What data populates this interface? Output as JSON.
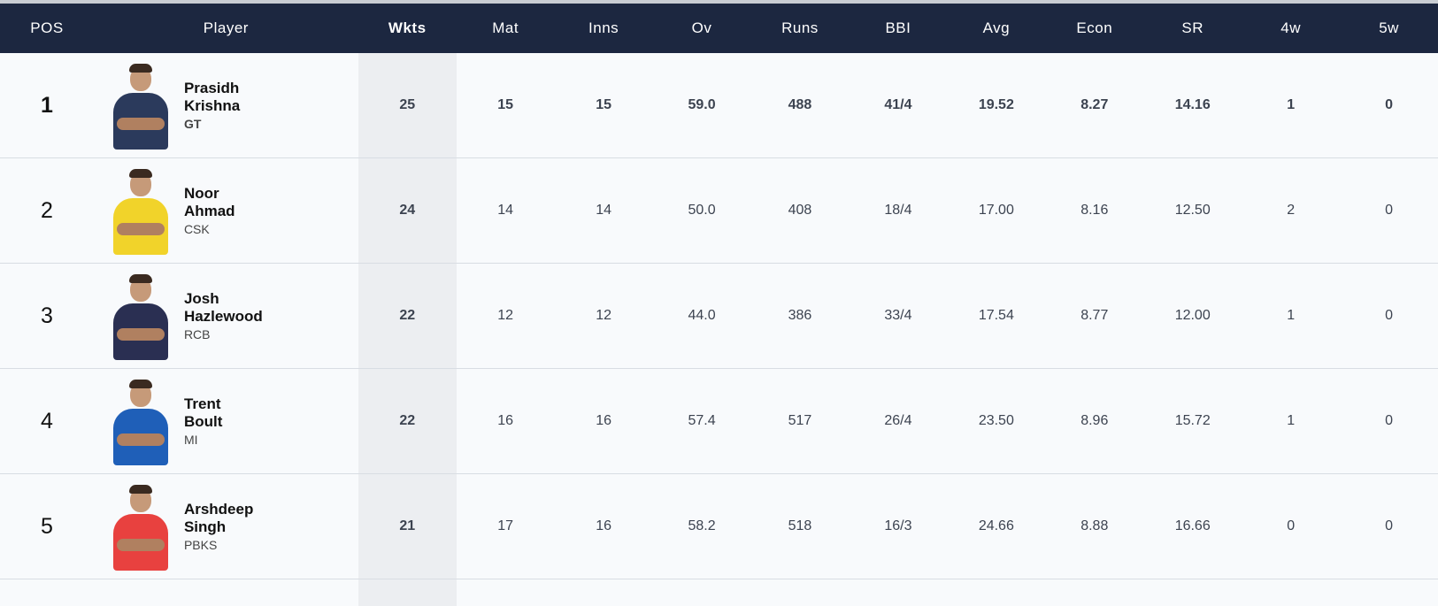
{
  "headers": {
    "pos": "POS",
    "player": "Player",
    "wkts": "Wkts",
    "mat": "Mat",
    "inns": "Inns",
    "ov": "Ov",
    "runs": "Runs",
    "bbi": "BBI",
    "avg": "Avg",
    "econ": "Econ",
    "sr": "SR",
    "four_w": "4w",
    "five_w": "5w"
  },
  "rows": [
    {
      "pos": "1",
      "first": "Prasidh",
      "last": "Krishna",
      "team": "GT",
      "wkts": "25",
      "mat": "15",
      "inns": "15",
      "ov": "59.0",
      "runs": "488",
      "bbi": "41/4",
      "avg": "19.52",
      "econ": "8.27",
      "sr": "14.16",
      "four_w": "1",
      "five_w": "0",
      "jersey": "#2b3a5c"
    },
    {
      "pos": "2",
      "first": "Noor",
      "last": "Ahmad",
      "team": "CSK",
      "wkts": "24",
      "mat": "14",
      "inns": "14",
      "ov": "50.0",
      "runs": "408",
      "bbi": "18/4",
      "avg": "17.00",
      "econ": "8.16",
      "sr": "12.50",
      "four_w": "2",
      "five_w": "0",
      "jersey": "#f1d32a"
    },
    {
      "pos": "3",
      "first": "Josh",
      "last": "Hazlewood",
      "team": "RCB",
      "wkts": "22",
      "mat": "12",
      "inns": "12",
      "ov": "44.0",
      "runs": "386",
      "bbi": "33/4",
      "avg": "17.54",
      "econ": "8.77",
      "sr": "12.00",
      "four_w": "1",
      "five_w": "0",
      "jersey": "#2a2f52"
    },
    {
      "pos": "4",
      "first": "Trent",
      "last": "Boult",
      "team": "MI",
      "wkts": "22",
      "mat": "16",
      "inns": "16",
      "ov": "57.4",
      "runs": "517",
      "bbi": "26/4",
      "avg": "23.50",
      "econ": "8.96",
      "sr": "15.72",
      "four_w": "1",
      "five_w": "0",
      "jersey": "#1f5fb8"
    },
    {
      "pos": "5",
      "first": "Arshdeep",
      "last": "Singh",
      "team": "PBKS",
      "wkts": "21",
      "mat": "17",
      "inns": "16",
      "ov": "58.2",
      "runs": "518",
      "bbi": "16/3",
      "avg": "24.66",
      "econ": "8.88",
      "sr": "16.66",
      "four_w": "0",
      "five_w": "0",
      "jersey": "#e8413f"
    }
  ]
}
